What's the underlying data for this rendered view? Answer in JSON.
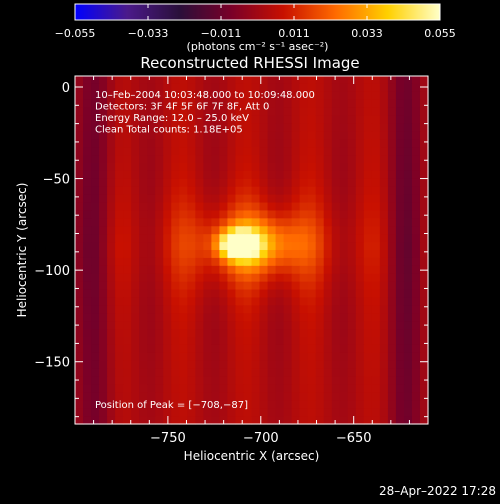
{
  "chart_data": {
    "type": "heatmap",
    "title": "Reconstructed RHESSI Image",
    "xlabel": "Heliocentric X (arcsec)",
    "ylabel": "Heliocentric Y (arcsec)",
    "xlim": [
      -800,
      -610
    ],
    "ylim": [
      -184,
      6
    ],
    "xticks": [
      -750,
      -700,
      -650
    ],
    "xtick_labels": [
      "−750",
      "−700",
      "−650"
    ],
    "yticks": [
      0,
      -50,
      -100,
      -150
    ],
    "ytick_labels": [
      "0",
      "−50",
      "−100",
      "−150"
    ],
    "annotations": [
      "10–Feb–2004 10:03:48.000 to 10:09:48.000",
      "Detectors: 3F 4F 5F 6F 7F 8F, Att 0",
      "Energy Range: 12.0 – 25.0 keV",
      "Clean    Total counts: 1.18E+05"
    ],
    "peak_label": "Position of Peak = [−708,−87]",
    "peak": {
      "x": -708,
      "y": -87
    },
    "colorbar": {
      "min": -0.055,
      "max": 0.055,
      "ticks": [
        -0.055,
        -0.033,
        -0.011,
        0.011,
        0.033,
        0.055
      ],
      "tick_labels": [
        "−0.055",
        "−0.033",
        "−0.011",
        "0.011",
        "0.033",
        "0.055"
      ],
      "label": "(photons cm⁻² s⁻¹ asec⁻²)",
      "colors": [
        "#0000ff",
        "#4b1a8a",
        "#2a0f3a",
        "#7a0028",
        "#c81000",
        "#ff6a00",
        "#ffd000",
        "#ffffc8"
      ]
    },
    "sources": [
      {
        "x": -712,
        "y": -86,
        "sx": 7,
        "sy": 5,
        "amp": 0.055
      },
      {
        "x": -702,
        "y": -86,
        "sx": 16,
        "sy": 10,
        "amp": 0.024
      },
      {
        "x": -705,
        "y": -86,
        "sx": 34,
        "sy": 18,
        "amp": 0.013
      }
    ],
    "background": 0.003,
    "grid": false
  },
  "footer": {
    "date": "28–Apr–2022 17:28"
  }
}
